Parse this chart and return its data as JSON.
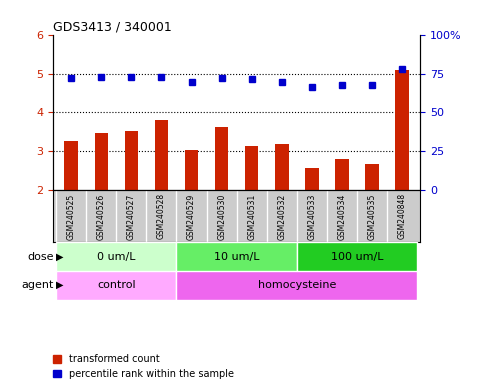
{
  "title": "GDS3413 / 340001",
  "samples": [
    "GSM240525",
    "GSM240526",
    "GSM240527",
    "GSM240528",
    "GSM240529",
    "GSM240530",
    "GSM240531",
    "GSM240532",
    "GSM240533",
    "GSM240534",
    "GSM240535",
    "GSM240848"
  ],
  "red_values": [
    3.28,
    3.48,
    3.52,
    3.8,
    3.05,
    3.62,
    3.15,
    3.18,
    2.57,
    2.8,
    2.68,
    5.1
  ],
  "blue_values": [
    4.88,
    4.9,
    4.9,
    4.9,
    4.78,
    4.88,
    4.85,
    4.78,
    4.65,
    4.7,
    4.7,
    5.12
  ],
  "ylim_left": [
    2,
    6
  ],
  "ylim_right": [
    0,
    100
  ],
  "yticks_left": [
    2,
    3,
    4,
    5,
    6
  ],
  "yticks_right": [
    0,
    25,
    50,
    75,
    100
  ],
  "ytick_labels_right": [
    "0",
    "25",
    "50",
    "75",
    "100%"
  ],
  "grid_yticks": [
    3,
    4,
    5
  ],
  "dose_groups": [
    {
      "label": "0 um/L",
      "start": 0,
      "end": 4,
      "color": "#CCFFCC"
    },
    {
      "label": "10 um/L",
      "start": 4,
      "end": 8,
      "color": "#66EE66"
    },
    {
      "label": "100 um/L",
      "start": 8,
      "end": 12,
      "color": "#22CC22"
    }
  ],
  "agent_groups": [
    {
      "label": "control",
      "start": 0,
      "end": 4,
      "color": "#FFAAFF"
    },
    {
      "label": "homocysteine",
      "start": 4,
      "end": 12,
      "color": "#EE66EE"
    }
  ],
  "dose_label": "dose",
  "agent_label": "agent",
  "bar_color": "#CC2200",
  "dot_color": "#0000CC",
  "legend_items": [
    {
      "color": "#CC2200",
      "label": "transformed count"
    },
    {
      "color": "#0000CC",
      "label": "percentile rank within the sample"
    }
  ],
  "xlabel_area_color": "#CCCCCC",
  "tick_label_color_left": "#CC2200",
  "tick_label_color_right": "#0000CC",
  "bar_width": 0.45
}
